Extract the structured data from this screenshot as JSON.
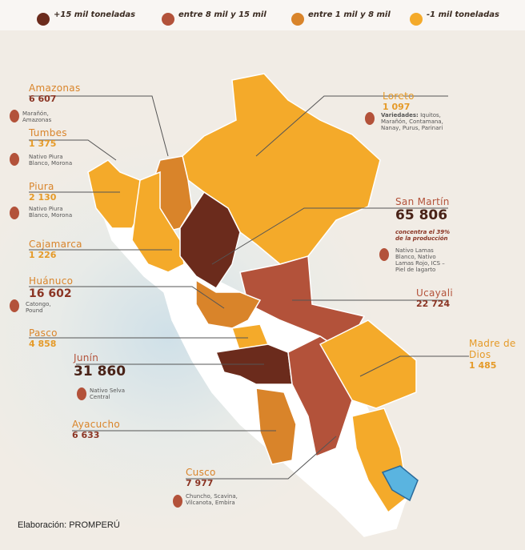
{
  "legend": {
    "items": [
      {
        "label": "+15 mil toneladas",
        "color": "#6b2b1c"
      },
      {
        "label": "entre 8 mil y 15 mil",
        "color": "#b3523a"
      },
      {
        "label": "entre 1 mil y 8 mil",
        "color": "#d9842a"
      },
      {
        "label": "-1 mil toneladas",
        "color": "#f4aa2a"
      }
    ]
  },
  "regions": [
    {
      "name": "Amazonas",
      "value": "6 607",
      "varieties": "Marañón, Amazonas"
    },
    {
      "name": "Tumbes",
      "value": "1 375",
      "varieties": "Nativo Piura Blanco, Morona"
    },
    {
      "name": "Piura",
      "value": "2 130",
      "varieties": "Nativo Piura Blanco, Morona"
    },
    {
      "name": "Cajamarca",
      "value": "1 226"
    },
    {
      "name": "Huánuco",
      "value": "16 602",
      "varieties": "Catongo, Pound"
    },
    {
      "name": "Pasco",
      "value": "4 858"
    },
    {
      "name": "Junín",
      "value": "31 860",
      "varieties": "Nativo Selva Central"
    },
    {
      "name": "Ayacucho",
      "value": "6 633"
    },
    {
      "name": "Cusco",
      "value": "7 977",
      "varieties": "Chuncho, Scavina, Vilcanota, Embira"
    },
    {
      "name": "Loreto",
      "value": "1 097",
      "varieties_label": "Variedades:",
      "varieties": "Iquitos, Marañón, Contamana, Nanay, Purus, Parinari"
    },
    {
      "name": "San Martín",
      "value": "65 806",
      "note": "concentra el 39% de la producción",
      "varieties": "Nativo Lamas Blanco, Nativo Lamas Rojo, ICS – Piel de lagarto"
    },
    {
      "name": "Ucayali",
      "value": "22 724"
    },
    {
      "name": "Madre de Dios",
      "value": "1 485"
    }
  ],
  "footer": {
    "source": "Elaboración: PROMPERÚ"
  }
}
